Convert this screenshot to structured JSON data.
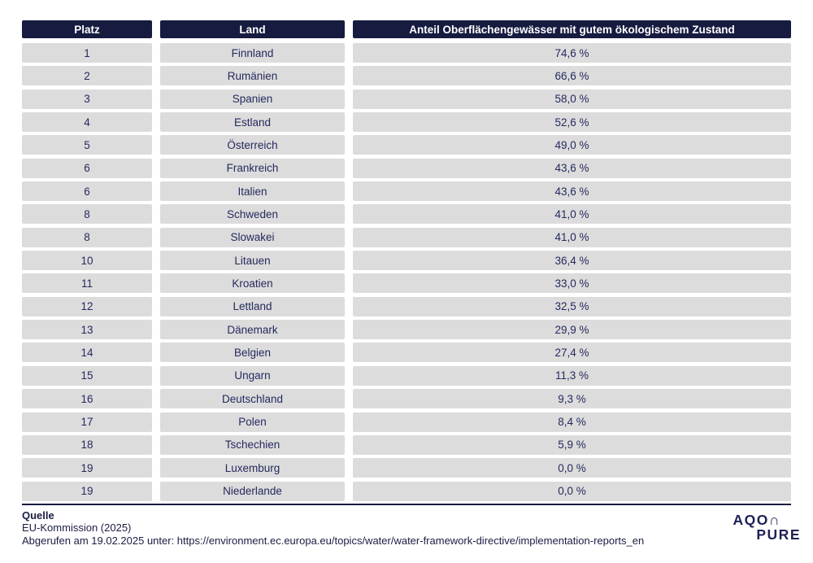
{
  "chart_data": {
    "type": "table",
    "title": "",
    "columns": [
      "Platz",
      "Land",
      "Anteil Oberflächengewässer mit gutem ökologischem Zustand"
    ],
    "rows": [
      {
        "platz": "1",
        "land": "Finnland",
        "anteil": "74,6 %"
      },
      {
        "platz": "2",
        "land": "Rumänien",
        "anteil": "66,6 %"
      },
      {
        "platz": "3",
        "land": "Spanien",
        "anteil": "58,0 %"
      },
      {
        "platz": "4",
        "land": "Estland",
        "anteil": "52,6 %"
      },
      {
        "platz": "5",
        "land": "Österreich",
        "anteil": "49,0 %"
      },
      {
        "platz": "6",
        "land": "Frankreich",
        "anteil": "43,6 %"
      },
      {
        "platz": "6",
        "land": "Italien",
        "anteil": "43,6 %"
      },
      {
        "platz": "8",
        "land": "Schweden",
        "anteil": "41,0 %"
      },
      {
        "platz": "8",
        "land": "Slowakei",
        "anteil": "41,0 %"
      },
      {
        "platz": "10",
        "land": "Litauen",
        "anteil": "36,4 %"
      },
      {
        "platz": "11",
        "land": "Kroatien",
        "anteil": "33,0 %"
      },
      {
        "platz": "12",
        "land": "Lettland",
        "anteil": "32,5 %"
      },
      {
        "platz": "13",
        "land": "Dänemark",
        "anteil": "29,9 %"
      },
      {
        "platz": "14",
        "land": "Belgien",
        "anteil": "27,4 %"
      },
      {
        "platz": "15",
        "land": "Ungarn",
        "anteil": "11,3 %"
      },
      {
        "platz": "16",
        "land": "Deutschland",
        "anteil": "9,3 %"
      },
      {
        "platz": "17",
        "land": "Polen",
        "anteil": "8,4 %"
      },
      {
        "platz": "18",
        "land": "Tschechien",
        "anteil": "5,9 %"
      },
      {
        "platz": "19",
        "land": "Luxemburg",
        "anteil": "0,0 %"
      },
      {
        "platz": "19",
        "land": "Niederlande",
        "anteil": "0,0 %"
      }
    ],
    "values_numeric": [
      74.6,
      66.6,
      58.0,
      52.6,
      49.0,
      43.6,
      43.6,
      41.0,
      41.0,
      36.4,
      33.0,
      32.5,
      29.9,
      27.4,
      11.3,
      9.3,
      8.4,
      5.9,
      0.0,
      0.0
    ]
  },
  "footer": {
    "source_label": "Quelle",
    "source_name": "EU-Kommission (2025)",
    "retrieved_line": "Abgerufen am 19.02.2025 unter: https://environment.ec.europa.eu/topics/water/water-framework-directive/implementation-reports_en"
  },
  "logo": {
    "line1": "AQO∩",
    "line2": "PURE"
  },
  "colors": {
    "header_bg": "#171b40",
    "row_bg": "#dcdcdc",
    "text_navy": "#252a5e",
    "divider": "#171b40"
  }
}
